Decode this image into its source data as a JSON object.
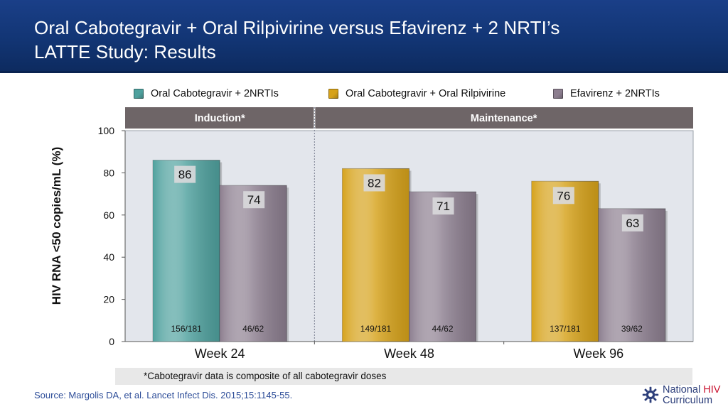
{
  "header": {
    "title_line1": "Oral Cabotegravir + Oral Rilpivirine versus Efavirenz + 2 NRTI’s",
    "title_line2": "LATTE Study: Results"
  },
  "colors": {
    "header_bg": "#133875",
    "series": [
      "#4fa19e",
      "#d6a21a",
      "#8c7e8f"
    ],
    "phase_band": "#6e6567",
    "plot_bg": "#e3e6ec",
    "source_text": "#2c4c98"
  },
  "legend": [
    {
      "label": "Oral Cabotegravir + 2NRTIs",
      "color": "#4fa19e"
    },
    {
      "label": "Oral Cabotegravir + Oral Rilpivirine",
      "color": "#d6a21a"
    },
    {
      "label": "Efavirenz + 2NRTIs",
      "color": "#8c7e8f"
    }
  ],
  "chart_data": {
    "type": "bar",
    "title": "",
    "ylabel": "HIV RNA <50 copies/mL (%)",
    "xlabel": "",
    "ylim": [
      0,
      100
    ],
    "yticks": [
      0,
      20,
      40,
      60,
      80,
      100
    ],
    "phases": [
      {
        "label": "Induction*",
        "categories": [
          "Week 24"
        ]
      },
      {
        "label": "Maintenance*",
        "categories": [
          "Week 48",
          "Week 96"
        ]
      }
    ],
    "groups": [
      {
        "category": "Week 24",
        "bars": [
          {
            "series": "Oral Cabotegravir + 2NRTIs",
            "value": 86,
            "n_label": "156/181"
          },
          {
            "series": "Efavirenz + 2NRTIs",
            "value": 74,
            "n_label": "46/62"
          }
        ]
      },
      {
        "category": "Week 48",
        "bars": [
          {
            "series": "Oral Cabotegravir + Oral Rilpivirine",
            "value": 82,
            "n_label": "149/181"
          },
          {
            "series": "Efavirenz + 2NRTIs",
            "value": 71,
            "n_label": "44/62"
          }
        ]
      },
      {
        "category": "Week 96",
        "bars": [
          {
            "series": "Oral Cabotegravir + Oral Rilpivirine",
            "value": 76,
            "n_label": "137/181"
          },
          {
            "series": "Efavirenz + 2NRTIs",
            "value": 63,
            "n_label": "39/62"
          }
        ]
      }
    ]
  },
  "footnote": "*Cabotegravir data is composite of all cabotegravir doses",
  "source": "Source: Margolis DA, et al. Lancet Infect Dis. 2015;15:1145-55.",
  "logo": {
    "icon": "gear-logo-icon",
    "line1_a": "National",
    "line1_b": "HIV",
    "line2": "Curriculum"
  }
}
